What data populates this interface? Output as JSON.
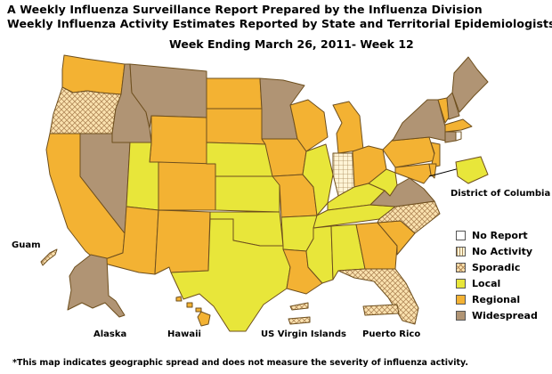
{
  "header": {
    "title_line1": "A Weekly Influenza Surveillance Report Prepared by the Influenza Division",
    "title_line2": "Weekly Influenza Activity Estimates Reported by State and Territorial Epidemiologists*",
    "week_label": "Week Ending March 26, 2011- Week 12"
  },
  "activity_colors": {
    "No Report": "#ffffff",
    "No Activity": "#fff4d6",
    "Sporadic": "#fbe3b0",
    "Local": "#e8e63a",
    "Regional": "#f3b233",
    "Widespread": "#b09474"
  },
  "legend": {
    "items": [
      {
        "label": "No Report",
        "level": "No Report"
      },
      {
        "label": "No Activity",
        "level": "No Activity"
      },
      {
        "label": "Sporadic",
        "level": "Sporadic"
      },
      {
        "label": "Local",
        "level": "Local"
      },
      {
        "label": "Regional",
        "level": "Regional"
      },
      {
        "label": "Widespread",
        "level": "Widespread"
      }
    ]
  },
  "regions": {
    "WA": "Regional",
    "OR": "Sporadic",
    "CA": "Regional",
    "ID": "Widespread",
    "NV": "Widespread",
    "MT": "Widespread",
    "WY": "Regional",
    "UT": "Local",
    "AZ": "Regional",
    "CO": "Regional",
    "NM": "Regional",
    "ND": "Regional",
    "SD": "Regional",
    "NE": "Local",
    "KS": "Local",
    "OK": "Local",
    "TX": "Local",
    "MN": "Widespread",
    "IA": "Regional",
    "MO": "Regional",
    "AR": "Local",
    "LA": "Regional",
    "WI": "Regional",
    "IL": "Local",
    "MS": "Local",
    "MI": "Regional",
    "IN": "No Activity",
    "KY": "Local",
    "TN": "Local",
    "AL": "Local",
    "OH": "Regional",
    "WV": "Local",
    "GA": "Regional",
    "FL": "Sporadic",
    "SC": "Regional",
    "NC": "Sporadic",
    "VA": "Widespread",
    "PA": "Regional",
    "NY": "Widespread",
    "ME": "Widespread",
    "VT": "Regional",
    "NH": "Widespread",
    "MA": "Regional",
    "CT": "Widespread",
    "NJ": "Regional",
    "MD": "Regional",
    "DE": "Regional",
    "DC": "Local",
    "AK": "Widespread",
    "HI": "Regional",
    "Guam": "Sporadic",
    "US Virgin Islands": "Sporadic",
    "Puerto Rico": "Sporadic"
  },
  "labels": {
    "guam": "Guam",
    "alaska": "Alaska",
    "hawaii": "Hawaii",
    "usvi": "US Virgin Islands",
    "puerto_rico": "Puerto Rico",
    "dc": "District of Columbia"
  },
  "footnote": "*This map indicates geographic spread and does not measure the severity of influenza activity."
}
